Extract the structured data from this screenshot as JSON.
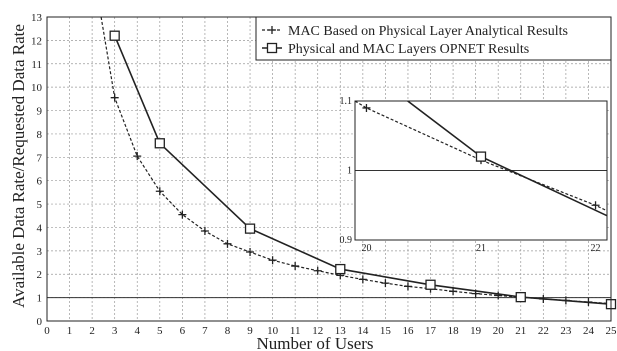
{
  "chart_data": [
    {
      "type": "line",
      "xlabel": "Number of Users",
      "ylabel": "Available Data Rate/Requested Data Rate",
      "xlim": [
        0,
        25
      ],
      "ylim": [
        0,
        13
      ],
      "x_ticks": [
        "0",
        "1",
        "2",
        "3",
        "4",
        "5",
        "6",
        "7",
        "8",
        "9",
        "10",
        "11",
        "12",
        "13",
        "14",
        "15",
        "16",
        "17",
        "18",
        "19",
        "20",
        "21",
        "22",
        "23",
        "24",
        "25"
      ],
      "y_ticks": [
        "0",
        "1",
        "2",
        "3",
        "4",
        "5",
        "6",
        "7",
        "8",
        "9",
        "10",
        "11",
        "12",
        "13"
      ],
      "grid": true,
      "legend_position": "top-right",
      "series": [
        {
          "name": "MAC Based on Physical Layer Analytical Results",
          "style": "dashed",
          "marker": "plus",
          "color": "#222222",
          "x": [
            2.4,
            3,
            4,
            5,
            6,
            7,
            8,
            9,
            10,
            11,
            12,
            13,
            14,
            15,
            16,
            17,
            18,
            19,
            20,
            21,
            22,
            23,
            24,
            25
          ],
          "y": [
            13.0,
            9.55,
            7.05,
            5.55,
            4.55,
            3.85,
            3.3,
            2.95,
            2.6,
            2.35,
            2.15,
            1.95,
            1.78,
            1.62,
            1.48,
            1.38,
            1.27,
            1.17,
            1.09,
            1.02,
            0.94,
            0.88,
            0.81,
            0.75
          ]
        },
        {
          "name": "Physical and MAC Layers OPNET Results",
          "style": "solid",
          "marker": "square",
          "color": "#222222",
          "x": [
            3,
            5,
            9,
            13,
            17,
            21,
            25
          ],
          "y": [
            12.2,
            7.6,
            3.95,
            2.22,
            1.55,
            1.02,
            0.72
          ]
        }
      ]
    },
    {
      "type": "line",
      "inset": true,
      "xlim": [
        19.9,
        22.1
      ],
      "ylim": [
        0.9,
        1.1
      ],
      "x_ticks": [
        "20",
        "21",
        "22"
      ],
      "y_ticks": [
        "0.9",
        "1",
        "1.1"
      ],
      "reference_line": 1,
      "series": [
        {
          "style": "dashed",
          "marker": "plus",
          "x": [
            19.9,
            20,
            21,
            22,
            22.1
          ],
          "y": [
            1.1,
            1.09,
            1.015,
            0.95,
            0.942
          ]
        },
        {
          "style": "solid",
          "marker": "square",
          "x": [
            20.36,
            21,
            22.1
          ],
          "y": [
            1.1,
            1.02,
            0.935
          ]
        }
      ]
    }
  ]
}
